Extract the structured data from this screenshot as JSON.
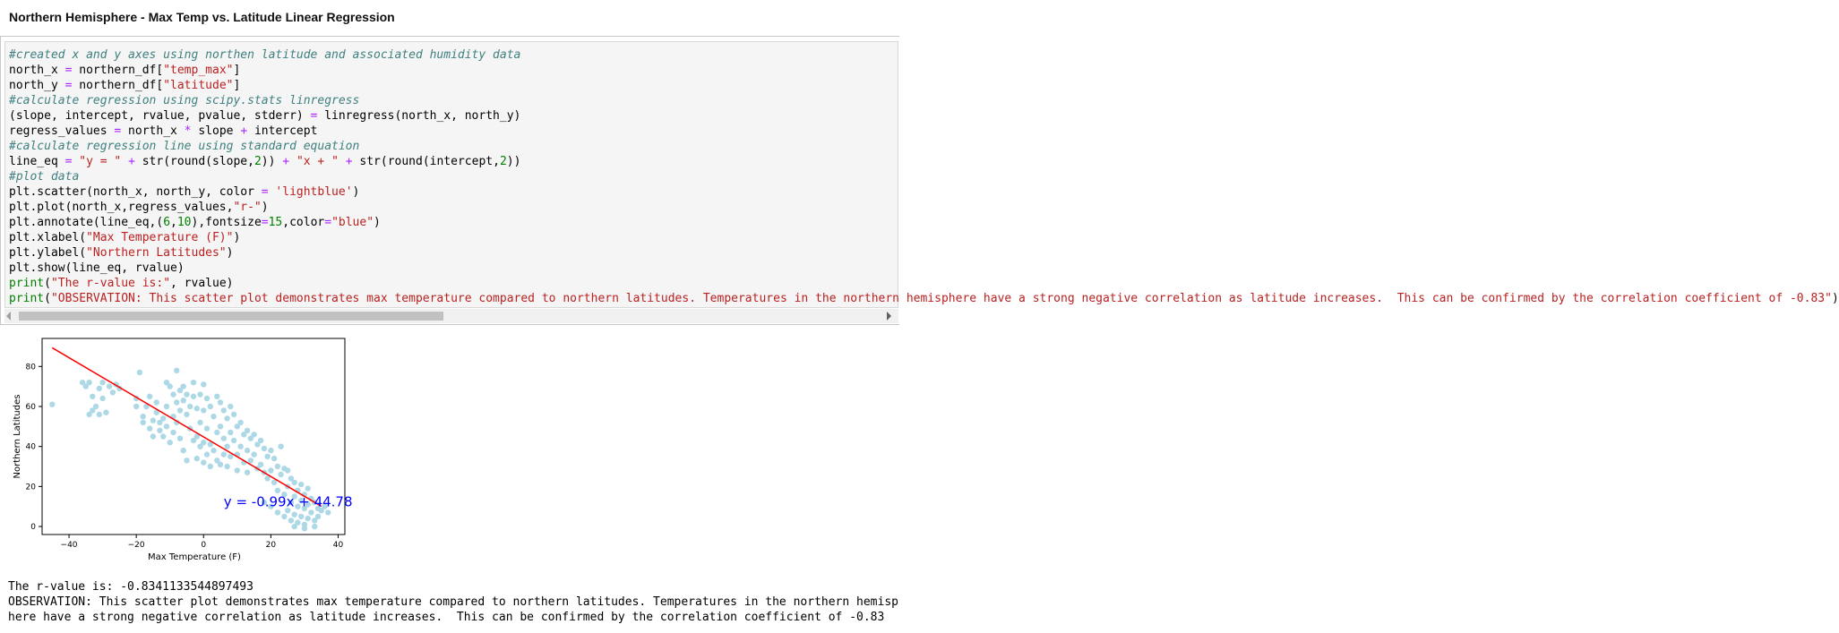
{
  "header": {
    "title": "Northern Hemisphere - Max Temp vs. Latitude Linear Regression"
  },
  "code_lines": [
    [
      {
        "t": "#created x and y axes using northen latitude and associated humidity data",
        "c": "cm"
      }
    ],
    [
      {
        "t": "north_x "
      },
      {
        "t": "=",
        "c": "op"
      },
      {
        "t": " northern_df["
      },
      {
        "t": "\"temp_max\"",
        "c": "st"
      },
      {
        "t": "]"
      }
    ],
    [
      {
        "t": "north_y "
      },
      {
        "t": "=",
        "c": "op"
      },
      {
        "t": " northern_df["
      },
      {
        "t": "\"latitude\"",
        "c": "st"
      },
      {
        "t": "]"
      }
    ],
    [
      {
        "t": "#calculate regression using scipy.stats linregress",
        "c": "cm"
      }
    ],
    [
      {
        "t": "(slope, intercept, rvalue, pvalue, stderr) "
      },
      {
        "t": "=",
        "c": "op"
      },
      {
        "t": " linregress(north_x, north_y)"
      }
    ],
    [
      {
        "t": "regress_values "
      },
      {
        "t": "=",
        "c": "op"
      },
      {
        "t": " north_x "
      },
      {
        "t": "*",
        "c": "op"
      },
      {
        "t": " slope "
      },
      {
        "t": "+",
        "c": "op"
      },
      {
        "t": " intercept"
      }
    ],
    [
      {
        "t": "#calculate regression line using standard equation",
        "c": "cm"
      }
    ],
    [
      {
        "t": "line_eq "
      },
      {
        "t": "=",
        "c": "op"
      },
      {
        "t": " "
      },
      {
        "t": "\"y = \"",
        "c": "st"
      },
      {
        "t": " "
      },
      {
        "t": "+",
        "c": "op"
      },
      {
        "t": " str(round(slope,"
      },
      {
        "t": "2",
        "c": "nu"
      },
      {
        "t": ")) "
      },
      {
        "t": "+",
        "c": "op"
      },
      {
        "t": " "
      },
      {
        "t": "\"x + \"",
        "c": "st"
      },
      {
        "t": " "
      },
      {
        "t": "+",
        "c": "op"
      },
      {
        "t": " str(round(intercept,"
      },
      {
        "t": "2",
        "c": "nu"
      },
      {
        "t": "))"
      }
    ],
    [
      {
        "t": "#plot data",
        "c": "cm"
      }
    ],
    [
      {
        "t": "plt.scatter(north_x, north_y, color "
      },
      {
        "t": "=",
        "c": "op"
      },
      {
        "t": " "
      },
      {
        "t": "'lightblue'",
        "c": "st"
      },
      {
        "t": ")"
      }
    ],
    [
      {
        "t": "plt.plot(north_x,regress_values,"
      },
      {
        "t": "\"r-\"",
        "c": "st"
      },
      {
        "t": ")"
      }
    ],
    [
      {
        "t": "plt.annotate(line_eq,("
      },
      {
        "t": "6",
        "c": "nu"
      },
      {
        "t": ","
      },
      {
        "t": "10",
        "c": "nu"
      },
      {
        "t": "),fontsize"
      },
      {
        "t": "=",
        "c": "op"
      },
      {
        "t": "15",
        "c": "nu"
      },
      {
        "t": ",color"
      },
      {
        "t": "=",
        "c": "op"
      },
      {
        "t": "\"blue\"",
        "c": "st"
      },
      {
        "t": ")"
      }
    ],
    [
      {
        "t": "plt.xlabel("
      },
      {
        "t": "\"Max Temperature (F)\"",
        "c": "st"
      },
      {
        "t": ")"
      }
    ],
    [
      {
        "t": "plt.ylabel("
      },
      {
        "t": "\"Northern Latitudes\"",
        "c": "st"
      },
      {
        "t": ")"
      }
    ],
    [
      {
        "t": "plt.show(line_eq, rvalue)"
      }
    ],
    [
      {
        "t": "print",
        "c": "nu"
      },
      {
        "t": "("
      },
      {
        "t": "\"The r-value is:\"",
        "c": "st"
      },
      {
        "t": ", rvalue)"
      }
    ],
    [
      {
        "t": "print",
        "c": "nu"
      },
      {
        "t": "("
      },
      {
        "t": "\"OBSERVATION: This scatter plot demonstrates max temperature compared to northern latitudes. Temperatures in the northern hemisphere have a strong negative correlation as latitude increases.  This can be confirmed by the correlation coefficient of -0.83\"",
        "c": "st"
      },
      {
        "t": ")"
      }
    ]
  ],
  "output": {
    "line1": "The r-value is: -0.8341133544897493",
    "line2": "OBSERVATION: This scatter plot demonstrates max temperature compared to northern latitudes. Temperatures in the northern hemisp",
    "line3": "here have a strong negative correlation as latitude increases.  This can be confirmed by the correlation coefficient of -0.83"
  },
  "chart_data": {
    "type": "scatter",
    "xlabel": "Max Temperature (F)",
    "ylabel": "Northern Latitudes",
    "xlim": [
      -48,
      42
    ],
    "ylim": [
      -4,
      94
    ],
    "xticks": [
      -40,
      -20,
      0,
      20,
      40
    ],
    "yticks": [
      0,
      20,
      40,
      60,
      80
    ],
    "point_color": "#add8e6",
    "line_color": "#ff0000",
    "annotation": {
      "text": "y = -0.99x + 44.78",
      "x": 6,
      "y": 10,
      "color": "#0000ff"
    },
    "regression": {
      "slope": -0.99,
      "intercept": 44.78,
      "x_from": -45,
      "x_to": 35
    },
    "points": [
      [
        -45,
        61
      ],
      [
        -36,
        72
      ],
      [
        -35,
        70
      ],
      [
        -34,
        72
      ],
      [
        -33,
        65
      ],
      [
        -32,
        60
      ],
      [
        -31,
        69
      ],
      [
        -30,
        72
      ],
      [
        -30,
        64
      ],
      [
        -29,
        57
      ],
      [
        -28,
        70
      ],
      [
        -27,
        67
      ],
      [
        -26,
        71
      ],
      [
        -25,
        69
      ],
      [
        -34,
        56
      ],
      [
        -33,
        58
      ],
      [
        -31,
        56
      ],
      [
        -20,
        64
      ],
      [
        -20,
        60
      ],
      [
        -19,
        77
      ],
      [
        -18,
        55
      ],
      [
        -18,
        52
      ],
      [
        -17,
        60
      ],
      [
        -16,
        65
      ],
      [
        -16,
        49
      ],
      [
        -15,
        53
      ],
      [
        -15,
        45
      ],
      [
        -14,
        62
      ],
      [
        -14,
        57
      ],
      [
        -13,
        52
      ],
      [
        -13,
        48
      ],
      [
        -12,
        54
      ],
      [
        -12,
        45
      ],
      [
        -11,
        72
      ],
      [
        -11,
        60
      ],
      [
        -11,
        50
      ],
      [
        -10,
        70
      ],
      [
        -10,
        42
      ],
      [
        -9,
        66
      ],
      [
        -9,
        55
      ],
      [
        -9,
        47
      ],
      [
        -8,
        78
      ],
      [
        -8,
        62
      ],
      [
        -8,
        52
      ],
      [
        -7,
        68
      ],
      [
        -7,
        58
      ],
      [
        -7,
        44
      ],
      [
        -6,
        70
      ],
      [
        -6,
        63
      ],
      [
        -6,
        38
      ],
      [
        -5,
        66
      ],
      [
        -5,
        56
      ],
      [
        -5,
        33
      ],
      [
        -4,
        60
      ],
      [
        -4,
        49
      ],
      [
        -3,
        72
      ],
      [
        -3,
        65
      ],
      [
        -3,
        43
      ],
      [
        -2,
        59
      ],
      [
        -2,
        45
      ],
      [
        -2,
        34
      ],
      [
        -1,
        66
      ],
      [
        -1,
        52
      ],
      [
        -1,
        40
      ],
      [
        0,
        71
      ],
      [
        0,
        58
      ],
      [
        0,
        42
      ],
      [
        0,
        32
      ],
      [
        1,
        64
      ],
      [
        1,
        49
      ],
      [
        1,
        36
      ],
      [
        2,
        60
      ],
      [
        2,
        41
      ],
      [
        2,
        30
      ],
      [
        3,
        55
      ],
      [
        3,
        38
      ],
      [
        4,
        65
      ],
      [
        4,
        47
      ],
      [
        4,
        33
      ],
      [
        5,
        62
      ],
      [
        5,
        50
      ],
      [
        5,
        31
      ],
      [
        6,
        58
      ],
      [
        6,
        44
      ],
      [
        6,
        36
      ],
      [
        7,
        54
      ],
      [
        7,
        40
      ],
      [
        7,
        30
      ],
      [
        8,
        60
      ],
      [
        8,
        47
      ],
      [
        8,
        35
      ],
      [
        9,
        56
      ],
      [
        9,
        43
      ],
      [
        10,
        50
      ],
      [
        10,
        36
      ],
      [
        10,
        28
      ],
      [
        11,
        52
      ],
      [
        11,
        40
      ],
      [
        12,
        46
      ],
      [
        12,
        32
      ],
      [
        13,
        48
      ],
      [
        13,
        38
      ],
      [
        13,
        27
      ],
      [
        14,
        44
      ],
      [
        14,
        33
      ],
      [
        15,
        46
      ],
      [
        15,
        36
      ],
      [
        16,
        41
      ],
      [
        16,
        29
      ],
      [
        17,
        43
      ],
      [
        17,
        31
      ],
      [
        18,
        39
      ],
      [
        18,
        27
      ],
      [
        19,
        35
      ],
      [
        19,
        24
      ],
      [
        20,
        38
      ],
      [
        20,
        28
      ],
      [
        21,
        34
      ],
      [
        21,
        22
      ],
      [
        22,
        30
      ],
      [
        22,
        18
      ],
      [
        23,
        40
      ],
      [
        23,
        26
      ],
      [
        24,
        29
      ],
      [
        24,
        16
      ],
      [
        25,
        28
      ],
      [
        25,
        20
      ],
      [
        25,
        8
      ],
      [
        26,
        24
      ],
      [
        26,
        12
      ],
      [
        26,
        3
      ],
      [
        27,
        22
      ],
      [
        27,
        15
      ],
      [
        27,
        6
      ],
      [
        28,
        18
      ],
      [
        28,
        10
      ],
      [
        28,
        2
      ],
      [
        29,
        21
      ],
      [
        29,
        13
      ],
      [
        29,
        5
      ],
      [
        30,
        16
      ],
      [
        30,
        9
      ],
      [
        30,
        1
      ],
      [
        31,
        19
      ],
      [
        31,
        11
      ],
      [
        31,
        4
      ],
      [
        32,
        14
      ],
      [
        32,
        7
      ],
      [
        33,
        12
      ],
      [
        33,
        3
      ],
      [
        34,
        9
      ],
      [
        34,
        5
      ],
      [
        35,
        8
      ],
      [
        36,
        10
      ],
      [
        37,
        7
      ],
      [
        33,
        0
      ],
      [
        30,
        -1
      ],
      [
        27,
        0
      ],
      [
        24,
        5
      ],
      [
        22,
        7
      ],
      [
        20,
        10
      ],
      [
        18,
        12
      ]
    ]
  }
}
